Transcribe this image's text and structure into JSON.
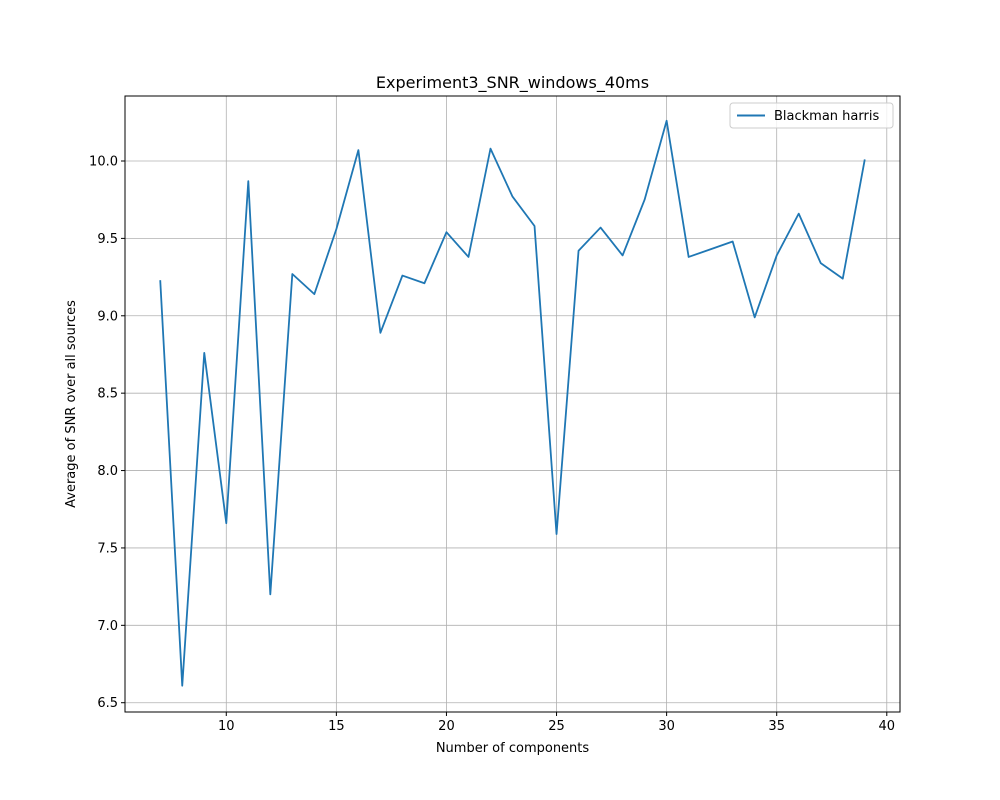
{
  "chart_data": {
    "type": "line",
    "title": "Experiment3_SNR_windows_40ms",
    "xlabel": "Number of components",
    "ylabel": "Average of SNR over all sources",
    "xlim": [
      5.4,
      40.6
    ],
    "ylim": [
      6.44,
      10.42
    ],
    "xticks": [
      10,
      15,
      20,
      25,
      30,
      35,
      40
    ],
    "xtick_labels": [
      "10",
      "15",
      "20",
      "25",
      "30",
      "35",
      "40"
    ],
    "yticks": [
      6.5,
      7.0,
      7.5,
      8.0,
      8.5,
      9.0,
      9.5,
      10.0
    ],
    "ytick_labels": [
      "6.5",
      "7.0",
      "7.5",
      "8.0",
      "8.5",
      "9.0",
      "9.5",
      "10.0"
    ],
    "grid": true,
    "legend_position": "top-right",
    "series": [
      {
        "name": "Blackman harris",
        "color": "#1f77b4",
        "x": [
          7,
          8,
          9,
          10,
          11,
          12,
          13,
          14,
          15,
          16,
          17,
          18,
          19,
          20,
          21,
          22,
          23,
          24,
          25,
          26,
          27,
          28,
          29,
          30,
          31,
          32,
          33,
          34,
          35,
          36,
          37,
          38,
          39
        ],
        "y": [
          9.23,
          6.61,
          8.76,
          7.66,
          9.87,
          7.2,
          9.27,
          9.14,
          9.56,
          10.07,
          8.89,
          9.26,
          9.21,
          9.54,
          9.38,
          10.08,
          9.77,
          9.58,
          7.59,
          9.42,
          9.57,
          9.39,
          9.75,
          10.26,
          9.38,
          9.43,
          9.48,
          8.99,
          9.39,
          9.66,
          9.34,
          9.24,
          10.01
        ]
      }
    ]
  }
}
